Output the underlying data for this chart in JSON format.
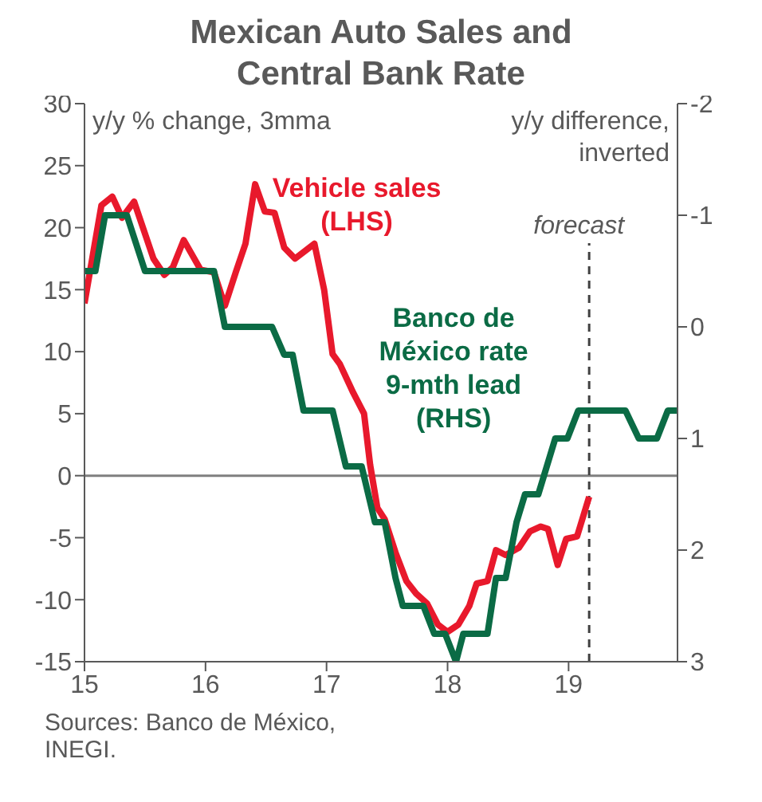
{
  "chart_data": {
    "type": "line",
    "title": "Mexican Auto Sales and Central Bank Rate",
    "ylabel": "y/y % change, 3mma",
    "y2label": "y/y difference, inverted",
    "xlim": [
      15,
      19.9
    ],
    "xticks": [
      15,
      16,
      17,
      18,
      19
    ],
    "ylim": [
      -15,
      30
    ],
    "yticks": [
      -15,
      -10,
      -5,
      0,
      5,
      10,
      15,
      20,
      25,
      30
    ],
    "y2lim": [
      3,
      -2
    ],
    "y2ticks": [
      -2,
      -1,
      0,
      1,
      2,
      3
    ],
    "marker": "none",
    "line_style": "solid",
    "series": [
      {
        "name": "Vehicle sales (LHS)",
        "color": "#e8192c",
        "x": [
          15,
          15.14,
          15.23,
          15.31,
          15.41,
          15.57,
          15.66,
          15.73,
          15.82,
          15.96,
          16.07,
          16.16,
          16.25,
          16.33,
          16.41,
          16.49,
          16.57,
          16.65,
          16.74,
          16.9,
          16.98,
          17.05,
          17.11,
          17.22,
          17.31,
          17.36,
          17.42,
          17.48,
          17.57,
          17.66,
          17.74,
          17.83,
          17.92,
          18,
          18.09,
          18.18,
          18.24,
          18.33,
          18.4,
          18.48,
          18.59,
          18.68,
          18.77,
          18.83,
          18.91,
          18.98,
          19.07,
          19.17
        ],
        "values": [
          13.9,
          21.8,
          22.5,
          20.8,
          22.1,
          17.5,
          16.2,
          16.8,
          19,
          16.6,
          16.4,
          13.7,
          16.4,
          18.7,
          23.5,
          21.3,
          21.2,
          18.4,
          17.5,
          18.7,
          15,
          9.8,
          9,
          6.7,
          5,
          0.9,
          -2.6,
          -3.5,
          -6.2,
          -8.5,
          -9.5,
          -10.3,
          -12,
          -12.6,
          -12,
          -10.5,
          -8.7,
          -8.5,
          -6,
          -6.4,
          -5.8,
          -4.5,
          -4.1,
          -4.3,
          -7.2,
          -5.1,
          -4.9,
          -1.7
        ]
      },
      {
        "name": "Banco de México rate 9-mth lead (RHS)",
        "color": "#0b6b45",
        "axis": "y2",
        "x": [
          15,
          15.09,
          15.17,
          15.35,
          15.5,
          16.07,
          16.16,
          16.55,
          16.65,
          16.72,
          16.81,
          17.05,
          17.16,
          17.29,
          17.4,
          17.48,
          17.57,
          17.63,
          17.8,
          17.89,
          17.98,
          18.07,
          18.13,
          18.33,
          18.4,
          18.48,
          18.57,
          18.64,
          18.75,
          18.89,
          18.99,
          19.08,
          19.47,
          19.58,
          19.73,
          19.82,
          19.9
        ],
        "values": [
          -0.5,
          -0.5,
          -1,
          -1,
          -0.5,
          -0.5,
          0,
          0,
          0.25,
          0.25,
          0.75,
          0.75,
          1.25,
          1.25,
          1.75,
          1.75,
          2.25,
          2.5,
          2.5,
          2.75,
          2.75,
          3,
          2.75,
          2.75,
          2.25,
          2.25,
          1.75,
          1.5,
          1.5,
          1,
          1,
          0.75,
          0.75,
          1,
          1,
          0.75,
          0.75
        ]
      }
    ],
    "ref_lines": [
      {
        "axis": "y",
        "value": 0,
        "color": "#7f7f7f",
        "line_style": "solid"
      },
      {
        "axis": "x",
        "value": 19.17,
        "label": "forecast",
        "color": "#404040",
        "line_style": "dashed"
      }
    ],
    "annotations": [
      "Sources: Banco de México, INEGI."
    ]
  }
}
